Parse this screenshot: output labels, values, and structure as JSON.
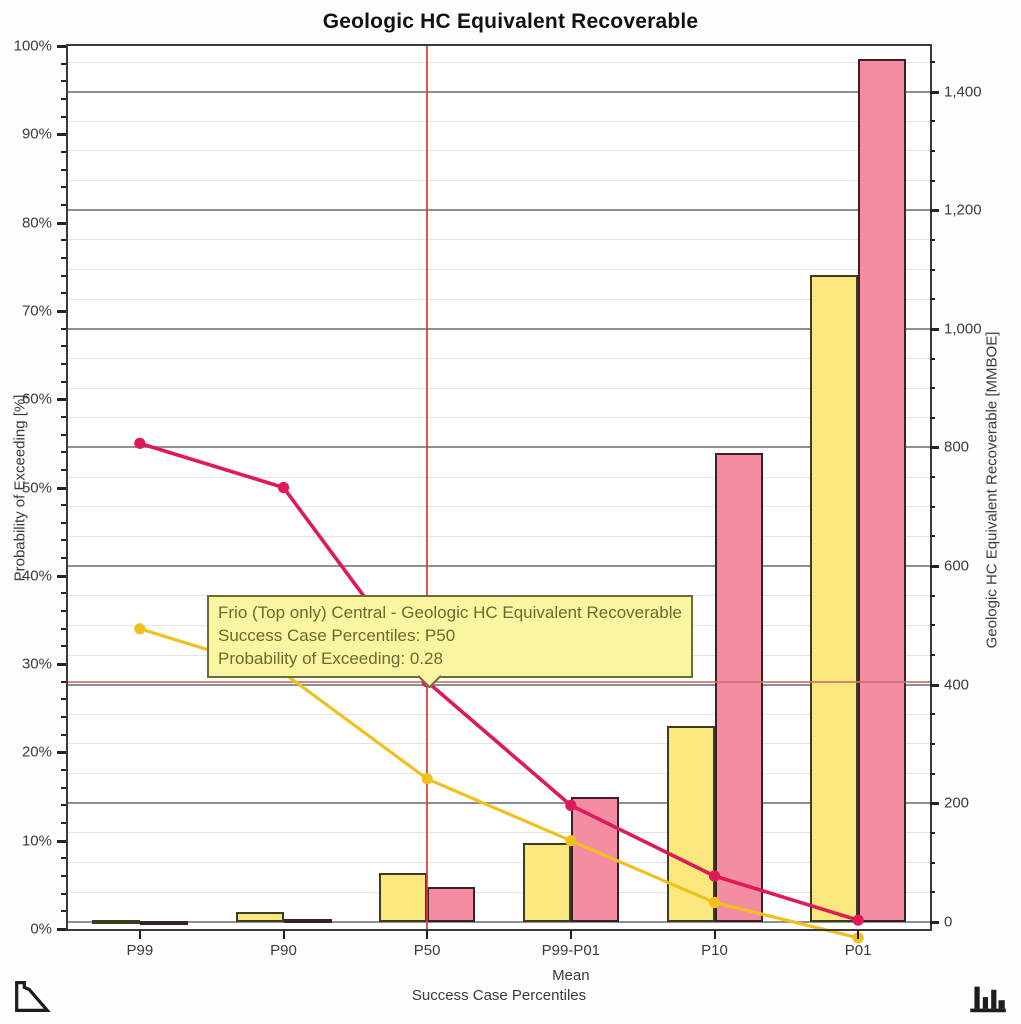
{
  "title": "Geologic HC Equivalent Recoverable",
  "axes": {
    "left_title": "Probability of Exceeding [%]",
    "right_title": "Geologic HC Equivalent Recoverable [MMBOE]",
    "x_title": "Success Case Percentiles"
  },
  "tooltip": {
    "line1": "Frio (Top only) Central - Geologic HC Equivalent Recoverable",
    "line2": "Success Case Percentiles: P50",
    "line3": "Probability of Exceeding: 0.28",
    "background": "#FAF5A0",
    "border_color": "#6C6C3A",
    "text_color": "#6B6B2F"
  },
  "icons": {
    "bottom_left": "decline-curve-icon",
    "bottom_right": "histogram-icon"
  },
  "chart_data": {
    "type": "bar",
    "subtype": "dual-axis combo: paired bars (right axis) + probability lines with markers (left axis)",
    "title": "Geologic HC Equivalent Recoverable",
    "categories": [
      "P99",
      "P90",
      "P50",
      "P99-P01",
      "P10",
      "P01"
    ],
    "category_sublabels": [
      "",
      "",
      "",
      "Mean",
      "",
      ""
    ],
    "xlabel": "Success Case Percentiles",
    "left_axis": {
      "label": "Probability of Exceeding [%]",
      "min": 0,
      "max": 100,
      "major_step": 10,
      "minor_step": 2,
      "tick_labels": [
        "0%",
        "10%",
        "20%",
        "30%",
        "40%",
        "50%",
        "60%",
        "70%",
        "80%",
        "90%",
        "100%"
      ],
      "gridlines": false
    },
    "right_axis": {
      "label": "Geologic HC Equivalent Recoverable [MMBOE]",
      "min": -12,
      "max": 1477,
      "major_step": 200,
      "minor_step": 50,
      "tick_values": [
        0,
        200,
        400,
        600,
        800,
        1000,
        1200,
        1400
      ],
      "tick_labels": [
        "0",
        "200",
        "400",
        "600",
        "800",
        "1,000",
        "1,200",
        "1,400"
      ],
      "gridlines": true
    },
    "bar_series": [
      {
        "name": "HC Recoverable (yellow)",
        "axis": "right",
        "fill": "#FBE77D",
        "border": "#3C3C21",
        "values": [
          3,
          17,
          82,
          133,
          330,
          1090
        ]
      },
      {
        "name": "HC Recoverable (pink)",
        "axis": "right",
        "fill": "#F48DA2",
        "border": "#3A2128",
        "values": [
          1,
          5,
          58,
          210,
          790,
          1455
        ]
      }
    ],
    "line_series": [
      {
        "name": "Probability of Exceeding (gold)",
        "axis": "left",
        "color": "#F0C11E",
        "values": [
          34,
          29,
          17,
          10,
          3,
          -1
        ]
      },
      {
        "name": "Probability of Exceeding (crimson)",
        "axis": "left",
        "color": "#DE1A5B",
        "values": [
          55,
          50,
          28,
          14,
          6,
          1
        ]
      }
    ],
    "crosshair": {
      "category": "P50",
      "category_index": 2,
      "value_pct": 28,
      "vertical_color": "#E23B2E",
      "horizontal_color": "#C97466"
    },
    "grid": {
      "horizontal_major_color": "#8F8F8F",
      "horizontal_minor_color": "#E3E3E3",
      "source": "right_axis"
    },
    "legend_position": "none"
  }
}
